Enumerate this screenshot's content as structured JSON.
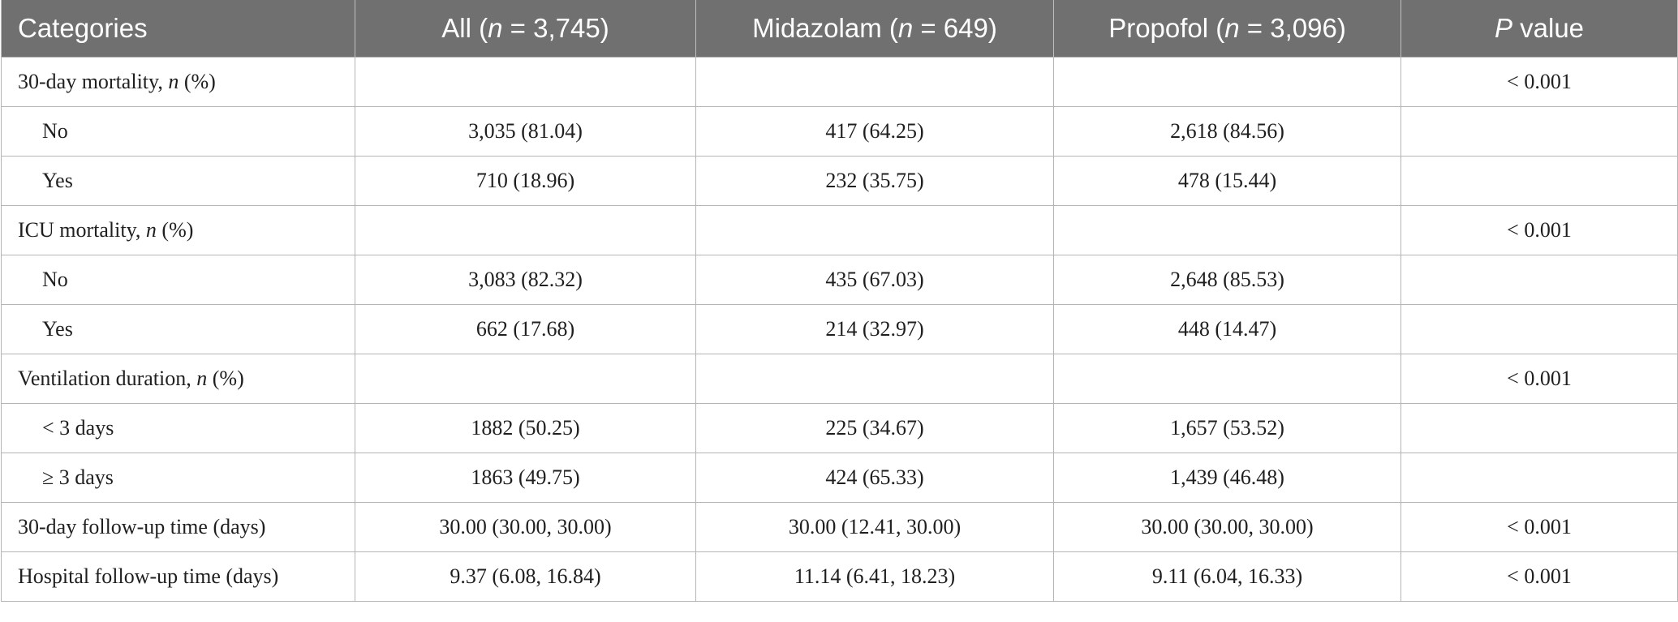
{
  "header": {
    "categories": "Categories",
    "all_pre": "All (",
    "all_n": "n",
    "all_post": " = 3,745)",
    "mid_pre": "Midazolam (",
    "mid_n": "n",
    "mid_post": " = 649)",
    "pro_pre": "Propofol (",
    "pro_n": "n",
    "pro_post": " = 3,096)",
    "p_italic": "P",
    "p_post": " value"
  },
  "rows": [
    {
      "label_pre": "30-day mortality, ",
      "label_it": "n",
      "label_post": " (%)",
      "all": "",
      "midazolam": "",
      "propofol": "",
      "p": "< 0.001"
    },
    {
      "label": "No",
      "all": "3,035 (81.04)",
      "midazolam": "417 (64.25)",
      "propofol": "2,618 (84.56)",
      "p": ""
    },
    {
      "label": "Yes",
      "all": "710 (18.96)",
      "midazolam": "232 (35.75)",
      "propofol": "478 (15.44)",
      "p": ""
    },
    {
      "label_pre": "ICU mortality, ",
      "label_it": "n",
      "label_post": " (%)",
      "all": "",
      "midazolam": "",
      "propofol": "",
      "p": "< 0.001"
    },
    {
      "label": "No",
      "all": "3,083 (82.32)",
      "midazolam": "435 (67.03)",
      "propofol": "2,648 (85.53)",
      "p": ""
    },
    {
      "label": "Yes",
      "all": "662 (17.68)",
      "midazolam": "214 (32.97)",
      "propofol": "448 (14.47)",
      "p": ""
    },
    {
      "label_pre": "Ventilation duration, ",
      "label_it": "n",
      "label_post": " (%)",
      "all": "",
      "midazolam": "",
      "propofol": "",
      "p": "< 0.001"
    },
    {
      "label": "< 3 days",
      "all": "1882 (50.25)",
      "midazolam": "225 (34.67)",
      "propofol": "1,657 (53.52)",
      "p": ""
    },
    {
      "label": "≥ 3 days",
      "all": "1863 (49.75)",
      "midazolam": "424 (65.33)",
      "propofol": "1,439 (46.48)",
      "p": ""
    },
    {
      "label": "30-day follow-up time (days)",
      "all": "30.00 (30.00, 30.00)",
      "midazolam": "30.00 (12.41, 30.00)",
      "propofol": "30.00 (30.00, 30.00)",
      "p": "< 0.001"
    },
    {
      "label": "Hospital follow-up time (days)",
      "all": "9.37 (6.08, 16.84)",
      "midazolam": "11.14 (6.41, 18.23)",
      "propofol": "9.11 (6.04, 16.33)",
      "p": "< 0.001"
    }
  ]
}
